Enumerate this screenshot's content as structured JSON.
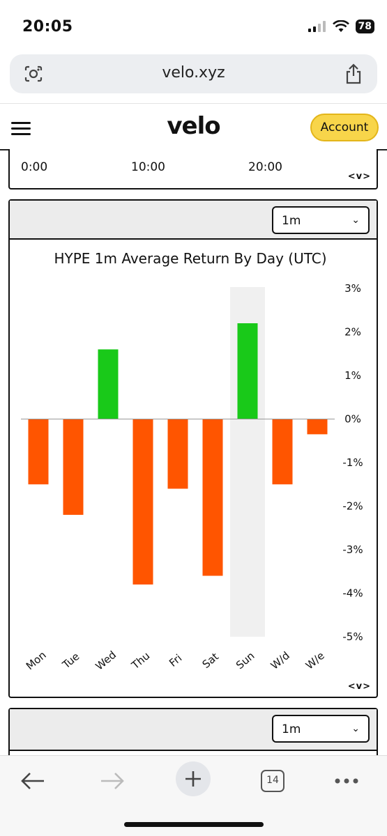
{
  "status": {
    "time": "20:05",
    "battery": "78"
  },
  "browser": {
    "url": "velo.xyz",
    "tab_count": "14"
  },
  "header": {
    "logo": "velo",
    "account_label": "Account"
  },
  "top_panel": {
    "time_labels": [
      "0:00",
      "10:00",
      "20:00"
    ],
    "nav_arrows": "<v>"
  },
  "chart_panel": {
    "period_select": "1m",
    "nav_arrows": "<v>"
  },
  "bottom_panel": {
    "period_select": "1m"
  },
  "colors": {
    "positive": "#19c919",
    "negative": "#ff5500",
    "highlight": "#f0f0f0",
    "account_button": "#f8d54a"
  },
  "chart_data": {
    "type": "bar",
    "title": "HYPE 1m Average Return By Day (UTC)",
    "categories": [
      "Mon",
      "Tue",
      "Wed",
      "Thu",
      "Fri",
      "Sat",
      "Sun",
      "W/d",
      "W/e"
    ],
    "values": [
      -1.5,
      -2.2,
      1.6,
      -3.8,
      -1.6,
      -3.6,
      2.2,
      -1.5,
      -0.35
    ],
    "unit": "%",
    "ylim": [
      -5,
      3
    ],
    "yticks": [
      3,
      2,
      1,
      0,
      -1,
      -2,
      -3,
      -4,
      -5
    ],
    "ytick_labels": [
      "3%",
      "2%",
      "1%",
      "0%",
      "-1%",
      "-2%",
      "-3%",
      "-4%",
      "-5%"
    ],
    "highlighted_category": "Sun",
    "grid": false,
    "legend": "none",
    "y_axis_side": "right"
  }
}
